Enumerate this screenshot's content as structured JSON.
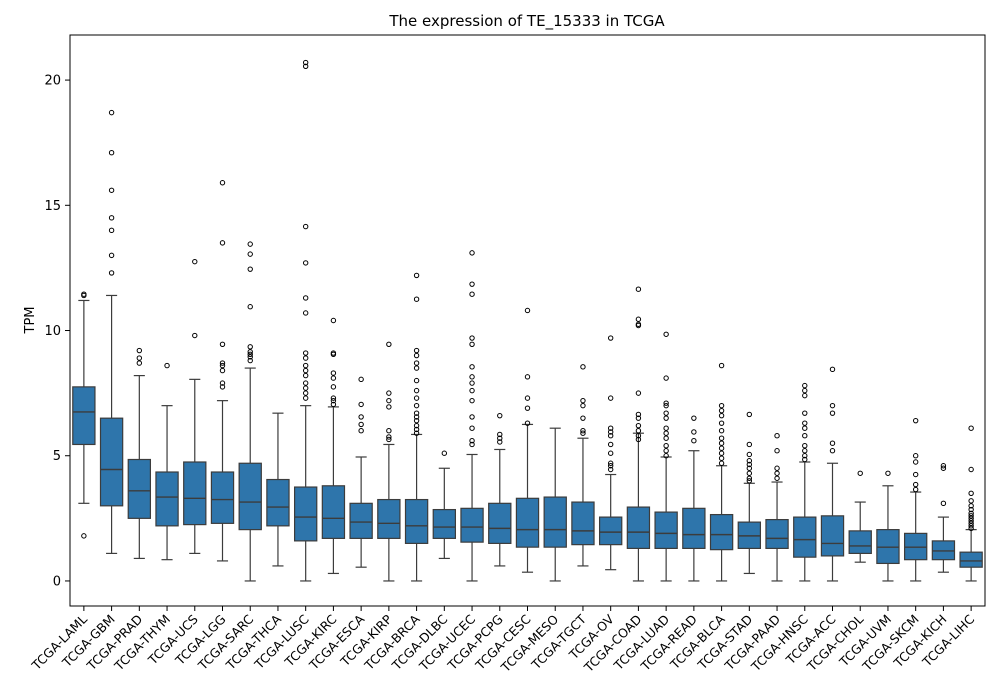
{
  "chart_data": {
    "type": "box",
    "title": "The expression of TE_15333 in TCGA",
    "xlabel": "",
    "ylabel": "TPM",
    "ylim": [
      -1,
      21.8
    ],
    "yticks": [
      0,
      5,
      10,
      15,
      20
    ],
    "grid": false,
    "legend": "none",
    "box_color": "#2e75ab",
    "categories": [
      "TCGA-LAML",
      "TCGA-GBM",
      "TCGA-PRAD",
      "TCGA-THYM",
      "TCGA-UCS",
      "TCGA-LGG",
      "TCGA-SARC",
      "TCGA-THCA",
      "TCGA-LUSC",
      "TCGA-KIRC",
      "TCGA-ESCA",
      "TCGA-KIRP",
      "TCGA-BRCA",
      "TCGA-DLBC",
      "TCGA-UCEC",
      "TCGA-PCPG",
      "TCGA-CESC",
      "TCGA-MESO",
      "TCGA-TGCT",
      "TCGA-OV",
      "TCGA-COAD",
      "TCGA-LUAD",
      "TCGA-READ",
      "TCGA-BLCA",
      "TCGA-STAD",
      "TCGA-PAAD",
      "TCGA-HNSC",
      "TCGA-ACC",
      "TCGA-CHOL",
      "TCGA-UVM",
      "TCGA-SKCM",
      "TCGA-KICH",
      "TCGA-LIHC"
    ],
    "boxes": [
      {
        "whislo": 3.1,
        "q1": 5.45,
        "med": 6.75,
        "q3": 7.75,
        "whishi": 11.2,
        "fliers": [
          1.8,
          11.4,
          11.45
        ]
      },
      {
        "whislo": 1.1,
        "q1": 3.0,
        "med": 4.45,
        "q3": 6.5,
        "whishi": 11.4,
        "fliers": [
          12.3,
          13.0,
          14.0,
          14.5,
          15.6,
          17.1,
          18.7
        ]
      },
      {
        "whislo": 0.9,
        "q1": 2.5,
        "med": 3.6,
        "q3": 4.85,
        "whishi": 8.2,
        "fliers": [
          8.7,
          8.9,
          9.2
        ]
      },
      {
        "whislo": 0.85,
        "q1": 2.2,
        "med": 3.35,
        "q3": 4.35,
        "whishi": 7.0,
        "fliers": [
          8.6
        ]
      },
      {
        "whislo": 1.1,
        "q1": 2.25,
        "med": 3.3,
        "q3": 4.75,
        "whishi": 8.05,
        "fliers": [
          9.8,
          12.75
        ]
      },
      {
        "whislo": 0.8,
        "q1": 2.3,
        "med": 3.25,
        "q3": 4.35,
        "whishi": 7.2,
        "fliers": [
          7.75,
          7.9,
          8.4,
          8.6,
          8.7,
          9.45,
          13.5,
          15.9
        ]
      },
      {
        "whislo": 0.0,
        "q1": 2.05,
        "med": 3.15,
        "q3": 4.7,
        "whishi": 8.5,
        "fliers": [
          8.8,
          8.95,
          9.05,
          9.15,
          9.35,
          10.95,
          12.45,
          13.05,
          13.45
        ]
      },
      {
        "whislo": 0.6,
        "q1": 2.2,
        "med": 2.95,
        "q3": 4.05,
        "whishi": 6.7,
        "fliers": []
      },
      {
        "whislo": 0.0,
        "q1": 1.6,
        "med": 2.55,
        "q3": 3.75,
        "whishi": 7.0,
        "fliers": [
          7.3,
          7.5,
          7.7,
          7.9,
          8.2,
          8.4,
          8.6,
          8.9,
          9.1,
          10.7,
          11.3,
          12.7,
          14.15,
          20.55,
          20.7
        ]
      },
      {
        "whislo": 0.3,
        "q1": 1.7,
        "med": 2.5,
        "q3": 3.8,
        "whishi": 6.95,
        "fliers": [
          7.05,
          7.2,
          7.3,
          7.75,
          8.1,
          8.3,
          9.05,
          9.1,
          10.4
        ]
      },
      {
        "whislo": 0.55,
        "q1": 1.7,
        "med": 2.35,
        "q3": 3.1,
        "whishi": 4.95,
        "fliers": [
          6.0,
          6.25,
          6.55,
          7.05,
          8.05
        ]
      },
      {
        "whislo": 0.0,
        "q1": 1.7,
        "med": 2.3,
        "q3": 3.25,
        "whishi": 5.45,
        "fliers": [
          5.65,
          5.75,
          6.0,
          6.95,
          7.2,
          7.5,
          9.45
        ]
      },
      {
        "whislo": 0.0,
        "q1": 1.5,
        "med": 2.2,
        "q3": 3.25,
        "whishi": 5.85,
        "fliers": [
          5.9,
          6.05,
          6.2,
          6.4,
          6.55,
          6.7,
          7.0,
          7.3,
          7.6,
          8.0,
          8.5,
          8.7,
          9.0,
          9.2,
          11.25,
          12.2
        ]
      },
      {
        "whislo": 0.9,
        "q1": 1.7,
        "med": 2.15,
        "q3": 2.85,
        "whishi": 4.5,
        "fliers": [
          5.1
        ]
      },
      {
        "whislo": 0.0,
        "q1": 1.55,
        "med": 2.15,
        "q3": 2.9,
        "whishi": 5.05,
        "fliers": [
          5.45,
          5.6,
          6.1,
          6.55,
          7.2,
          7.6,
          7.9,
          8.15,
          8.55,
          9.45,
          9.7,
          11.45,
          11.85,
          13.1
        ]
      },
      {
        "whislo": 0.6,
        "q1": 1.5,
        "med": 2.1,
        "q3": 3.1,
        "whishi": 5.25,
        "fliers": [
          5.55,
          5.7,
          5.85,
          6.6
        ]
      },
      {
        "whislo": 0.35,
        "q1": 1.35,
        "med": 2.05,
        "q3": 3.3,
        "whishi": 6.25,
        "fliers": [
          6.3,
          6.9,
          7.3,
          8.15,
          10.8
        ]
      },
      {
        "whislo": 0.0,
        "q1": 1.35,
        "med": 2.05,
        "q3": 3.35,
        "whishi": 6.1,
        "fliers": []
      },
      {
        "whislo": 0.6,
        "q1": 1.45,
        "med": 2.0,
        "q3": 3.15,
        "whishi": 5.7,
        "fliers": [
          5.9,
          6.0,
          6.5,
          7.0,
          7.2,
          8.55
        ]
      },
      {
        "whislo": 0.45,
        "q1": 1.45,
        "med": 1.95,
        "q3": 2.55,
        "whishi": 4.25,
        "fliers": [
          4.45,
          4.6,
          4.7,
          5.1,
          5.45,
          5.8,
          5.95,
          6.1,
          7.3,
          9.7
        ]
      },
      {
        "whislo": 0.0,
        "q1": 1.3,
        "med": 1.95,
        "q3": 2.95,
        "whishi": 5.9,
        "fliers": [
          5.65,
          5.8,
          6.0,
          6.2,
          6.5,
          6.65,
          7.5,
          10.2,
          10.25,
          10.45,
          11.65
        ]
      },
      {
        "whislo": 0.0,
        "q1": 1.3,
        "med": 1.9,
        "q3": 2.75,
        "whishi": 4.95,
        "fliers": [
          5.0,
          5.2,
          5.4,
          5.7,
          5.9,
          6.1,
          6.5,
          6.7,
          7.0,
          7.1,
          8.1,
          9.85
        ]
      },
      {
        "whislo": 0.0,
        "q1": 1.3,
        "med": 1.85,
        "q3": 2.9,
        "whishi": 5.2,
        "fliers": [
          5.6,
          5.95,
          6.5
        ]
      },
      {
        "whislo": 0.0,
        "q1": 1.25,
        "med": 1.85,
        "q3": 2.65,
        "whishi": 4.6,
        "fliers": [
          4.7,
          4.9,
          5.1,
          5.3,
          5.5,
          5.7,
          6.0,
          6.3,
          6.6,
          6.8,
          7.0,
          8.6
        ]
      },
      {
        "whislo": 0.3,
        "q1": 1.3,
        "med": 1.8,
        "q3": 2.35,
        "whishi": 3.9,
        "fliers": [
          4.0,
          4.1,
          4.3,
          4.5,
          4.65,
          4.8,
          5.05,
          5.45,
          6.65
        ]
      },
      {
        "whislo": 0.0,
        "q1": 1.3,
        "med": 1.7,
        "q3": 2.45,
        "whishi": 3.95,
        "fliers": [
          4.1,
          4.3,
          4.5,
          5.2,
          5.8
        ]
      },
      {
        "whislo": 0.0,
        "q1": 0.95,
        "med": 1.65,
        "q3": 2.55,
        "whishi": 4.75,
        "fliers": [
          4.85,
          5.0,
          5.2,
          5.4,
          5.8,
          6.1,
          6.3,
          6.7,
          7.4,
          7.6,
          7.8
        ]
      },
      {
        "whislo": 0.0,
        "q1": 1.0,
        "med": 1.5,
        "q3": 2.6,
        "whishi": 4.7,
        "fliers": [
          5.2,
          5.5,
          6.7,
          7.0,
          8.45
        ]
      },
      {
        "whislo": 0.75,
        "q1": 1.1,
        "med": 1.4,
        "q3": 2.0,
        "whishi": 3.15,
        "fliers": [
          4.3
        ]
      },
      {
        "whislo": 0.0,
        "q1": 0.7,
        "med": 1.35,
        "q3": 2.05,
        "whishi": 3.8,
        "fliers": [
          4.3
        ]
      },
      {
        "whislo": 0.0,
        "q1": 0.85,
        "med": 1.35,
        "q3": 1.9,
        "whishi": 3.55,
        "fliers": [
          3.65,
          3.85,
          4.25,
          4.75,
          5.0,
          6.4
        ]
      },
      {
        "whislo": 0.35,
        "q1": 0.85,
        "med": 1.2,
        "q3": 1.6,
        "whishi": 2.55,
        "fliers": [
          3.1,
          4.5,
          4.6
        ]
      },
      {
        "whislo": 0.0,
        "q1": 0.55,
        "med": 0.8,
        "q3": 1.15,
        "whishi": 2.05,
        "fliers": [
          2.1,
          2.2,
          2.3,
          2.4,
          2.5,
          2.6,
          2.7,
          2.85,
          3.0,
          3.2,
          3.5,
          4.45,
          6.1
        ]
      }
    ]
  }
}
